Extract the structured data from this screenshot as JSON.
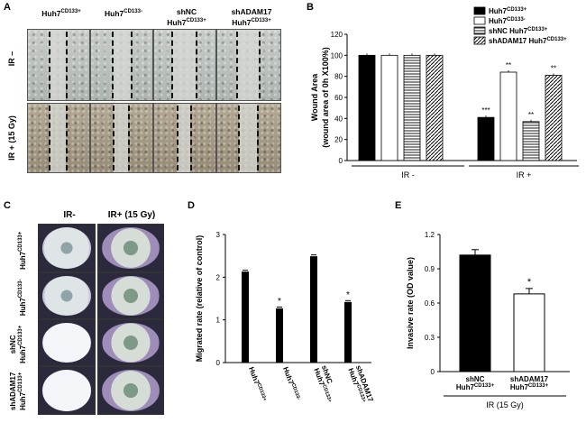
{
  "panels": {
    "a": {
      "letter": "A",
      "columns": [
        {
          "main": "Huh7",
          "sup": "CD133+",
          "line1": ""
        },
        {
          "main": "Huh7",
          "sup": "CD133-",
          "line1": ""
        },
        {
          "main": "Huh7",
          "sup": "CD133+",
          "line1": "shNC"
        },
        {
          "main": "Huh7",
          "sup": "CD133+",
          "line1": "shADAM17"
        }
      ],
      "rows": [
        "IR –",
        "IR + (15 Gy)"
      ]
    },
    "b": {
      "letter": "B"
    },
    "c": {
      "letter": "C",
      "columns": [
        "IR-",
        "IR+ (15 Gy)"
      ],
      "rows": [
        {
          "line1": "",
          "main": "Huh7",
          "sup": "CD133+"
        },
        {
          "line1": "",
          "main": "Huh7",
          "sup": "CD133-"
        },
        {
          "line1": "shNC",
          "main": "Huh7",
          "sup": "CD133+"
        },
        {
          "line1": "shADAM17",
          "main": "Huh7",
          "sup": "CD133+"
        }
      ]
    },
    "d": {
      "letter": "D"
    },
    "e": {
      "letter": "E"
    }
  },
  "chart_data": [
    {
      "panel": "B",
      "type": "bar",
      "ylabel": "Wound Area",
      "ylabel2": "(wound area of 0h X100%)",
      "ylim": [
        0,
        120
      ],
      "yticks": [
        0,
        20,
        40,
        60,
        80,
        100,
        120
      ],
      "groups": [
        "IR -",
        "IR +"
      ],
      "legend": [
        {
          "main": "Huh7",
          "sup": "CD133+",
          "style": "solid-black"
        },
        {
          "main": "Huh7",
          "sup": "CD133-",
          "style": "white"
        },
        {
          "main": "shNC Huh7",
          "sup": "CD133+",
          "style": "horizontal-lines"
        },
        {
          "main": "shADAM17 Huh7",
          "sup": "CD133+",
          "style": "diagonal-lines"
        }
      ],
      "legend_placement": "top-right",
      "series": [
        {
          "values": [
            100,
            41
          ]
        },
        {
          "values": [
            100,
            84
          ]
        },
        {
          "values": [
            100,
            37
          ]
        },
        {
          "values": [
            100,
            81
          ]
        }
      ],
      "annotations": [
        [
          "",
          "***"
        ],
        [
          "",
          "**"
        ],
        [
          "",
          "**"
        ],
        [
          "",
          "**"
        ]
      ]
    },
    {
      "panel": "D",
      "type": "bar",
      "ylabel": "Migrated rate (relative of control)",
      "ylim": [
        0,
        3
      ],
      "yticks": [
        0,
        1,
        2,
        3
      ],
      "categories": [
        {
          "line1": "",
          "main": "Huh7",
          "sup": "CD133+"
        },
        {
          "line1": "",
          "main": "Huh7",
          "sup": "CD133-"
        },
        {
          "line1": "shNC",
          "main": "Huh7",
          "sup": "CD133+"
        },
        {
          "line1": "shADAM17",
          "main": "Huh7",
          "sup": "CD133+"
        }
      ],
      "values": [
        2.13,
        1.27,
        2.49,
        1.42
      ],
      "annotations": [
        "",
        "*",
        "",
        "*"
      ]
    },
    {
      "panel": "E",
      "type": "bar",
      "ylabel": "Invasive rate (OD value)",
      "xlabel": "IR (15 Gy)",
      "ylim": [
        0,
        1.2
      ],
      "yticks": [
        "0",
        "0.3",
        "0.6",
        "0.9",
        "1.2"
      ],
      "categories": [
        {
          "line1": "shNC",
          "main": "Huh7",
          "sup": "CD133+"
        },
        {
          "line1": "shADAM17",
          "main": "Huh7",
          "sup": "CD133+"
        }
      ],
      "values": [
        1.02,
        0.68
      ],
      "bar_colors": [
        "#000000",
        "#ffffff"
      ],
      "annotations": [
        "",
        "*"
      ]
    }
  ]
}
